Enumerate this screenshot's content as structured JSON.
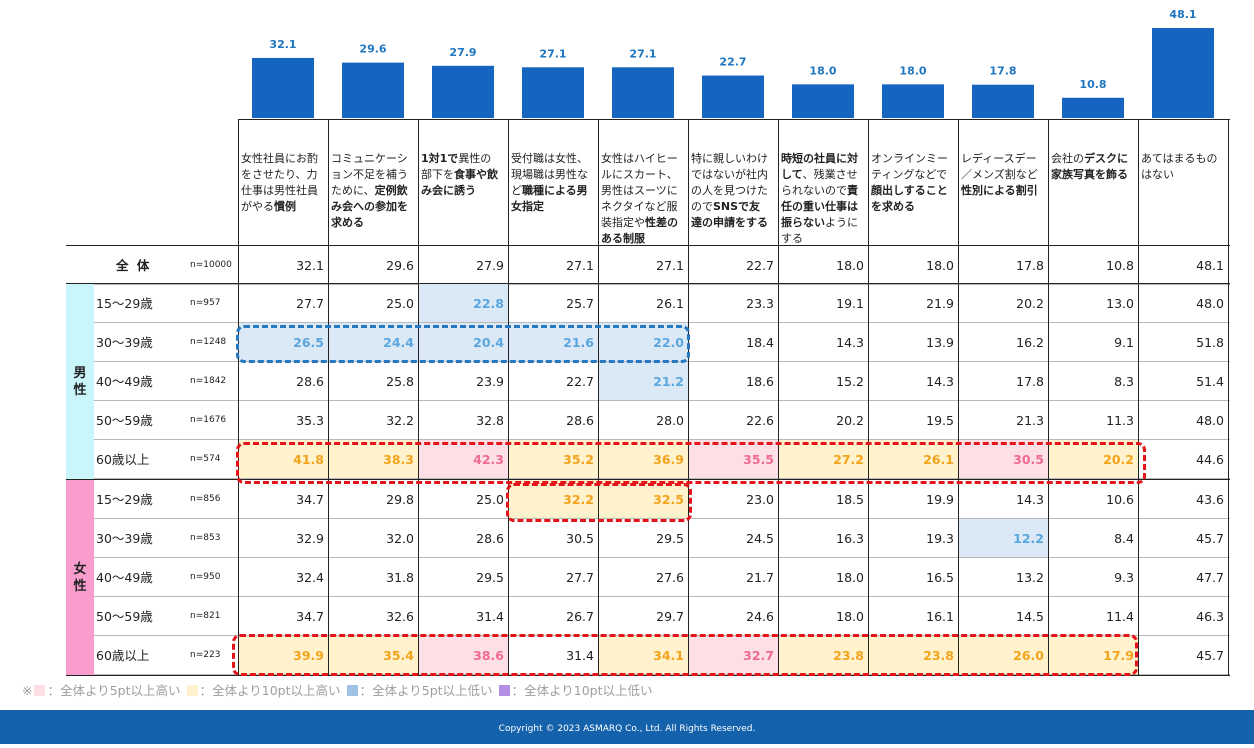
{
  "colors": {
    "bar": "#1565c0",
    "bar_label": "#1f76c0",
    "pink_bg": "#fde0e6",
    "pink_text": "#f06a93",
    "orange_bg": "#fff2cc",
    "orange_text": "#f4a41c",
    "blue_bg": "#dbe8f5",
    "blue_text": "#5aa7df",
    "purple": "#b28ee5",
    "male_side": "#c9f6fb",
    "female_side": "#f79ccd",
    "footer": "#1562ac"
  },
  "chart_data": {
    "type": "bar",
    "categories_html": [
      "女性社員にお酌をさせたり、力仕事は男性社員がやる<b>慣例</b>",
      "コミュニケーション不足を補うために、<b>定例飲み会への参加を求める</b>",
      "<b>1対1で</b>異性の部下を<b>食事や飲み会に誘う</b>",
      "受付職は女性、現場職は男性など<b>職種による男女指定</b>",
      "女性はハイヒールにスカート、男性はスーツにネクタイなど服装指定や<b>性差のある制服</b>",
      "特に親しいわけではないが社内の人を見つけたので<b>SNSで友達の申請をする</b>",
      "<b>時短の社員に対して</b>、残業させられないので<b>責任の重い仕事は振らない</b>ようにする",
      "オンラインミーティングなどで<b>顔出しすることを求める</b>",
      "レディースデー／メンズ割など<b>性別による割引</b>",
      "会社の<b>デスクに家族写真を飾る</b>",
      "あてはまるものはない"
    ],
    "values": [
      32.1,
      29.6,
      27.9,
      27.1,
      27.1,
      22.7,
      18.0,
      18.0,
      17.8,
      10.8,
      48.1
    ],
    "value_labels": [
      "32.1",
      "29.6",
      "27.9",
      "27.1",
      "27.1",
      "22.7",
      "18.0",
      "18.0",
      "17.8",
      "10.8",
      "48.1"
    ],
    "table": {
      "total": {
        "label": "全 体",
        "n": "n=10000",
        "values": [
          "32.1",
          "29.6",
          "27.9",
          "27.1",
          "27.1",
          "22.7",
          "18.0",
          "18.0",
          "17.8",
          "10.8",
          "48.1"
        ]
      },
      "groups": [
        {
          "gender": "男性",
          "rows": [
            {
              "label": "15～29歳",
              "n": "n=957",
              "values": [
                "27.7",
                "25.0",
                "22.8",
                "25.7",
                "26.1",
                "23.3",
                "19.1",
                "21.9",
                "20.2",
                "13.0",
                "48.0"
              ],
              "hl": [
                "",
                "",
                "b",
                "",
                "",
                "",
                "",
                "",
                "",
                "",
                ""
              ]
            },
            {
              "label": "30～39歳",
              "n": "n=1248",
              "values": [
                "26.5",
                "24.4",
                "20.4",
                "21.6",
                "22.0",
                "18.4",
                "14.3",
                "13.9",
                "16.2",
                "9.1",
                "51.8"
              ],
              "hl": [
                "b",
                "b",
                "b",
                "b",
                "b",
                "",
                "",
                "",
                "",
                "",
                ""
              ]
            },
            {
              "label": "40～49歳",
              "n": "n=1842",
              "values": [
                "28.6",
                "25.8",
                "23.9",
                "22.7",
                "21.2",
                "18.6",
                "15.2",
                "14.3",
                "17.8",
                "8.3",
                "51.4"
              ],
              "hl": [
                "",
                "",
                "",
                "",
                "b",
                "",
                "",
                "",
                "",
                "",
                ""
              ]
            },
            {
              "label": "50～59歳",
              "n": "n=1676",
              "values": [
                "35.3",
                "32.2",
                "32.8",
                "28.6",
                "28.0",
                "22.6",
                "20.2",
                "19.5",
                "21.3",
                "11.3",
                "48.0"
              ],
              "hl": [
                "",
                "",
                "",
                "",
                "",
                "",
                "",
                "",
                "",
                "",
                ""
              ]
            },
            {
              "label": "60歳以上",
              "n": "n=574",
              "values": [
                "41.8",
                "38.3",
                "42.3",
                "35.2",
                "36.9",
                "35.5",
                "27.2",
                "26.1",
                "30.5",
                "20.2",
                "44.6"
              ],
              "hl": [
                "o",
                "o",
                "p",
                "o",
                "o",
                "p",
                "o",
                "o",
                "p",
                "o",
                ""
              ]
            }
          ]
        },
        {
          "gender": "女性",
          "rows": [
            {
              "label": "15～29歳",
              "n": "n=856",
              "values": [
                "34.7",
                "29.8",
                "25.0",
                "32.2",
                "32.5",
                "23.0",
                "18.5",
                "19.9",
                "14.3",
                "10.6",
                "43.6"
              ],
              "hl": [
                "",
                "",
                "",
                "o",
                "o",
                "",
                "",
                "",
                "",
                "",
                ""
              ]
            },
            {
              "label": "30～39歳",
              "n": "n=853",
              "values": [
                "32.9",
                "32.0",
                "28.6",
                "30.5",
                "29.5",
                "24.5",
                "16.3",
                "19.3",
                "12.2",
                "8.4",
                "45.7"
              ],
              "hl": [
                "",
                "",
                "",
                "",
                "",
                "",
                "",
                "",
                "b",
                "",
                ""
              ]
            },
            {
              "label": "40～49歳",
              "n": "n=950",
              "values": [
                "32.4",
                "31.8",
                "29.5",
                "27.7",
                "27.6",
                "21.7",
                "18.0",
                "16.5",
                "13.2",
                "9.3",
                "47.7"
              ],
              "hl": [
                "",
                "",
                "",
                "",
                "",
                "",
                "",
                "",
                "",
                "",
                ""
              ]
            },
            {
              "label": "50～59歳",
              "n": "n=821",
              "values": [
                "34.7",
                "32.6",
                "31.4",
                "26.7",
                "29.7",
                "24.6",
                "18.0",
                "16.1",
                "14.5",
                "11.4",
                "46.3"
              ],
              "hl": [
                "",
                "",
                "",
                "",
                "",
                "",
                "",
                "",
                "",
                "",
                ""
              ]
            },
            {
              "label": "60歳以上",
              "n": "n=223",
              "values": [
                "39.9",
                "35.4",
                "38.6",
                "31.4",
                "34.1",
                "32.7",
                "23.8",
                "23.8",
                "26.0",
                "17.9",
                "45.7"
              ],
              "hl": [
                "o",
                "o",
                "p",
                "",
                "o",
                "p",
                "o",
                "o",
                "o",
                "o",
                ""
              ]
            }
          ]
        }
      ]
    }
  },
  "legend": {
    "prefix": "※",
    "items": [
      {
        "color": "#fde0e6",
        "text": "：全体より5pt以上高い"
      },
      {
        "color": "#fff2cc",
        "text": "：全体より10pt以上高い"
      },
      {
        "color": "#9fc3e4",
        "text": "：全体より5pt以上低い"
      },
      {
        "color": "#b28ee5",
        "text": "：全体より10pt以上低い"
      }
    ]
  },
  "footer": {
    "copyright": "Copyright © 2023 ASMARQ Co., Ltd. All Rights Reserved."
  }
}
